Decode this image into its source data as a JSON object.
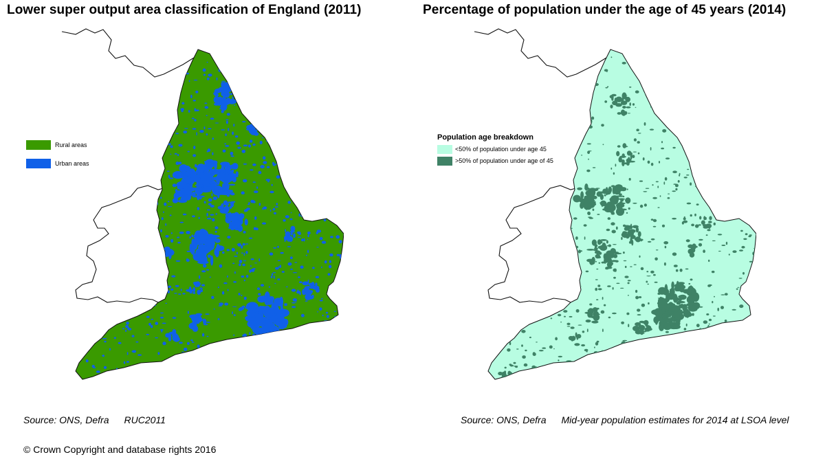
{
  "left_panel": {
    "title": "Lower super output area classification of England (2011)",
    "legend": [
      {
        "label": "Rural areas",
        "color": "#3a9a00"
      },
      {
        "label": "Urban areas",
        "color": "#1060e8"
      }
    ],
    "source_label": "Source: ONS, Defra",
    "source_detail": "RUC2011"
  },
  "right_panel": {
    "title": "Percentage of population under the age of 45 years (2014)",
    "legend_title": "Population age breakdown",
    "legend": [
      {
        "label": "<50% of population under age 45",
        "color": "#b8fde2"
      },
      {
        "label": ">50% of population under age of 45",
        "color": "#3f8266"
      }
    ],
    "source_label": "Source: ONS, Defra",
    "source_detail": "Mid-year population estimates for 2014 at LSOA level"
  },
  "copyright": "© Crown Copyright and database rights 2016"
}
